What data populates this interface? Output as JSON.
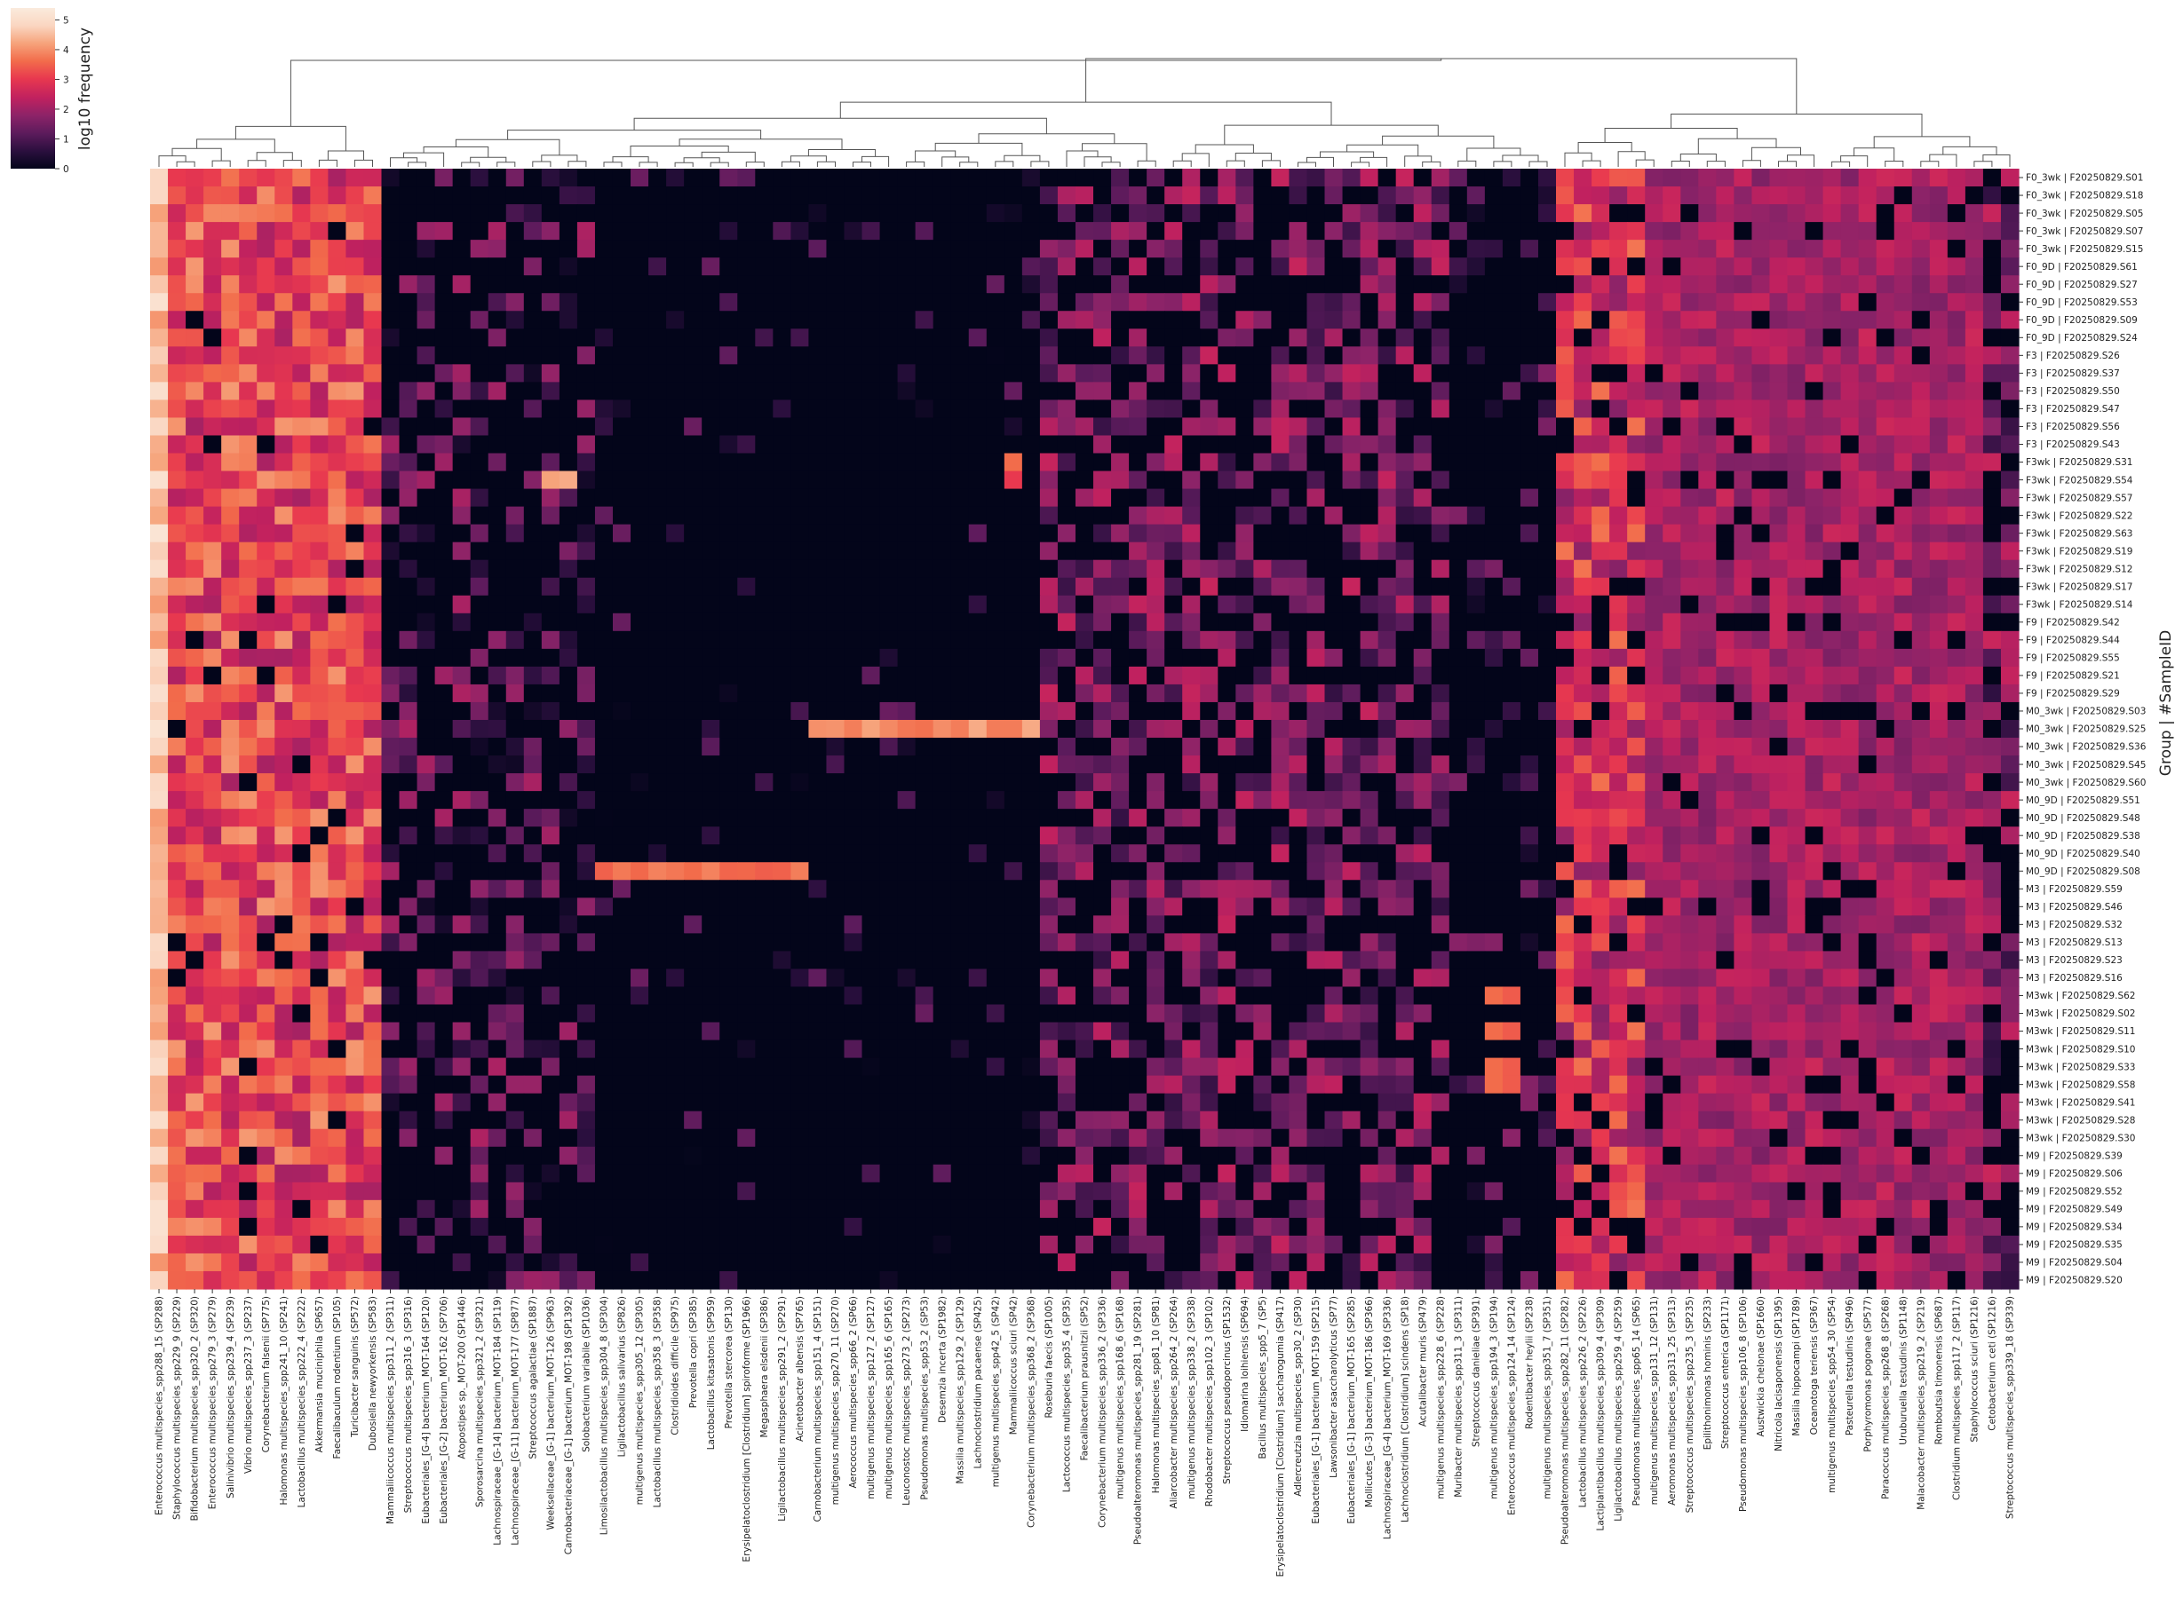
{
  "chart_data": {
    "type": "heatmap",
    "title": "",
    "ylabel": "Group | #SampleID",
    "xlabel": "",
    "dendrogram": "columns",
    "colorbar": {
      "label": "log10 frequency",
      "ticks": [
        "0",
        "1",
        "2",
        "3",
        "4",
        "5"
      ],
      "range": [
        0,
        5.4
      ],
      "colors": [
        "#03051a",
        "#2b0f3e",
        "#5c1b5c",
        "#8c2368",
        "#c0215f",
        "#e8384f",
        "#f26c4b",
        "#f6a37b",
        "#fad6c1",
        "#faebdd"
      ]
    },
    "rows": [
      "F0_3wk | F20250829.S01",
      "F0_3wk | F20250829.S18",
      "F0_3wk | F20250829.S05",
      "F0_3wk | F20250829.S07",
      "F0_3wk | F20250829.S15",
      "F0_9D | F20250829.S61",
      "F0_9D | F20250829.S27",
      "F0_9D | F20250829.S53",
      "F0_9D | F20250829.S09",
      "F0_9D | F20250829.S24",
      "F3 | F20250829.S26",
      "F3 | F20250829.S37",
      "F3 | F20250829.S50",
      "F3 | F20250829.S47",
      "F3 | F20250829.S56",
      "F3 | F20250829.S43",
      "F3wk | F20250829.S31",
      "F3wk | F20250829.S54",
      "F3wk | F20250829.S57",
      "F3wk | F20250829.S22",
      "F3wk | F20250829.S63",
      "F3wk | F20250829.S19",
      "F3wk | F20250829.S12",
      "F3wk | F20250829.S17",
      "F3wk | F20250829.S14",
      "F9 | F20250829.S42",
      "F9 | F20250829.S44",
      "F9 | F20250829.S55",
      "F9 | F20250829.S21",
      "F9 | F20250829.S29",
      "M0_3wk | F20250829.S03",
      "M0_3wk | F20250829.S25",
      "M0_3wk | F20250829.S36",
      "M0_3wk | F20250829.S45",
      "M0_3wk | F20250829.S60",
      "M0_9D | F20250829.S51",
      "M0_9D | F20250829.S48",
      "M0_9D | F20250829.S38",
      "M0_9D | F20250829.S40",
      "M0_9D | F20250829.S08",
      "M3 | F20250829.S59",
      "M3 | F20250829.S46",
      "M3 | F20250829.S32",
      "M3 | F20250829.S13",
      "M3 | F20250829.S23",
      "M3 | F20250829.S16",
      "M3wk | F20250829.S62",
      "M3wk | F20250829.S02",
      "M3wk | F20250829.S11",
      "M3wk | F20250829.S10",
      "M3wk | F20250829.S33",
      "M3wk | F20250829.S58",
      "M3wk | F20250829.S41",
      "M3wk | F20250829.S28",
      "M3wk | F20250829.S30",
      "M9 | F20250829.S39",
      "M9 | F20250829.S06",
      "M9 | F20250829.S52",
      "M9 | F20250829.S49",
      "M9 | F20250829.S34",
      "M9 | F20250829.S35",
      "M9 | F20250829.S04",
      "M9 | F20250829.S20"
    ],
    "columns": [
      "Enterococcus multispecies_spp288_15 (SP288)",
      "Staphylococcus multispecies_spp229_9 (SP229)",
      "Bifidobacterium multispecies_spp320_2 (SP320)",
      "Enterococcus multispecies_spp279_3 (SP279)",
      "Salinivibrio multispecies_spp239_4 (SP239)",
      "Vibrio multispecies_spp237_3 (SP237)",
      "Corynebacterium falsenii (SP775)",
      "Halomonas multispecies_spp241_10 (SP241)",
      "Lactobacillus multispecies_spp222_4 (SP222)",
      "Akkermansia muciniphila (SP657)",
      "Faecalibaculum rodentium (SP105)",
      "Turicibacter sanguinis (SP572)",
      "Dubosiella newyorkensis (SP583)",
      "Mammaliicoccus multispecies_spp311_2 (SP311)",
      "Streptococcus multispecies_spp316_3 (SP316)",
      "Eubacteriales_[G-4] bacterium_MOT-164 (SP120)",
      "Eubacteriales_[G-2] bacterium_MOT-162 (SP706)",
      "Atopostipes sp._MOT-200 (SP1446)",
      "Sporosarcina multispecies_spp321_2 (SP321)",
      "Lachnospiraceae_[G-14] bacterium_MOT-184 (SP119)",
      "Lachnospiraceae_[G-11] bacterium_MOT-177 (SP877)",
      "Streptococcus agalactiae (SP1887)",
      "Weeksellaceae_[G-1] bacterium_MOT-126 (SP963)",
      "Carnobacteriaceae_[G-1] bacterium_MOT-198 (SP1392)",
      "Solobacterium variabile (SP1036)",
      "Limosilactobacillus multispecies_spp304_8 (SP304)",
      "Ligilactobacillus salivarius (SP826)",
      "multigenus multispecies_spp305_12 (SP305)",
      "Lactobacillus multispecies_spp358_3 (SP358)",
      "Clostridioides difficile (SP975)",
      "Prevotella copri (SP385)",
      "Lactobacillus kitasatonis (SP959)",
      "Prevotella stercorea (SP130)",
      "Erysipelatoclostridium [Clostridium] spiroforme (SP1966)",
      "Megasphaera elsdenii (SP386)",
      "Ligilactobacillus multispecies_spp291_2 (SP291)",
      "Acinetobacter albensis (SP765)",
      "Carnobacterium multispecies_spp151_4 (SP151)",
      "multigenus multispecies_spp270_11 (SP270)",
      "Aerococcus multispecies_spp66_2 (SP66)",
      "multigenus multispecies_spp127_2 (SP127)",
      "multigenus multispecies_spp165_6 (SP165)",
      "Leuconostoc multispecies_spp273_2 (SP273)",
      "Pseudomonas multispecies_spp53_2 (SP53)",
      "Desemzia incerta (SP1982)",
      "Massilia multispecies_spp129_2 (SP129)",
      "Lachnoclostridium pacaense (SP425)",
      "multigenus multispecies_spp42_5 (SP42)",
      "Mammaliicoccus sciuri (SP42)",
      "Corynebacterium multispecies_spp368_2 (SP368)",
      "Roseburia faecis (SP1005)",
      "Lactococcus multispecies_spp35_4 (SP35)",
      "Faecalibacterium prausnitzii (SP52)",
      "Corynebacterium multispecies_spp336_2 (SP336)",
      "multigenus multispecies_spp168_6 (SP168)",
      "Pseudoalteromonas multispecies_spp281_19 (SP281)",
      "Halomonas multispecies_spp81_10 (SP81)",
      "Aliarcobacter multispecies_spp264_2 (SP264)",
      "multigenus multispecies_spp338_2 (SP338)",
      "Rhodobacter multispecies_spp102_3 (SP102)",
      "Streptococcus pseudoporcinus (SP1532)",
      "Idiomarina loihiensis (SP694)",
      "Bacillus multispecies_spp5_7 (SP5)",
      "Erysipelatoclostridium [Clostridium] saccharogumia (SP417)",
      "Adlercreutzia multispecies_spp30_2 (SP30)",
      "Eubacteriales_[G-1] bacterium_MOT-159 (SP215)",
      "Lawsonibacter asaccharolyticus (SP77)",
      "Eubacteriales_[G-1] bacterium_MOT-165 (SP285)",
      "Mollicutes_[G-3] bacterium_MOT-186 (SP366)",
      "Lachnospiraceae_[G-4] bacterium_MOT-169 (SP336)",
      "Lachnoclostridium [Clostridium] scindens (SP18)",
      "Acutalibacter muris (SP479)",
      "multigenus multispecies_spp228_6 (SP228)",
      "Muribacter multispecies_spp311_3 (SP311)",
      "Streptococcus danieliae (SP391)",
      "multigenus multispecies_spp194_3 (SP194)",
      "Enterococcus multispecies_spp124_14 (SP124)",
      "Rodentibacter heylii (SP238)",
      "multigenus multispecies_spp351_7 (SP351)",
      "Pseudoalteromonas multispecies_spp282_11 (SP282)",
      "Lactobacillus multispecies_spp226_2 (SP226)",
      "Lactiplantibacillus multispecies_spp309_4 (SP309)",
      "Ligilactobacillus multispecies_spp259_4 (SP259)",
      "Pseudomonas multispecies_spp65_14 (SP65)",
      "multigenus multispecies_spp131_12 (SP131)",
      "Aeromonas multispecies_spp313_25 (SP313)",
      "Streptococcus multispecies_spp235_3 (SP235)",
      "Epilithonimonas hominis (SP233)",
      "Streptococcus enterica (SP1171)",
      "Pseudomonas multispecies_spp106_8 (SP106)",
      "Austwickia chelonae (SP1660)",
      "Nitricola lacisaponensis (SP1395)",
      "Massilia hippocampi (SP1789)",
      "Oceanotoga teriensis (SP367)",
      "multigenus multispecies_spp54_30 (SP54)",
      "Pasteurella testudinis (SP496)",
      "Porphyromonas pogonae (SP577)",
      "Paracoccus multispecies_spp268_8 (SP268)",
      "Uruburuella testudinis (SP1148)",
      "Malacobacter multispecies_spp219_2 (SP219)",
      "Romboutsia timonensis (SP687)",
      "Clostridium multispecies_spp117_2 (SP117)",
      "Staphylococcus sciuri (SP1216)",
      "Cetobacterium ceti (SP1216)",
      "Streptococcus multispecies_spp339_18 (SP339)"
    ],
    "column_profiles": "approximate log10 frequency levels (0-5.4) estimated from the color of each cell",
    "values": []
  }
}
